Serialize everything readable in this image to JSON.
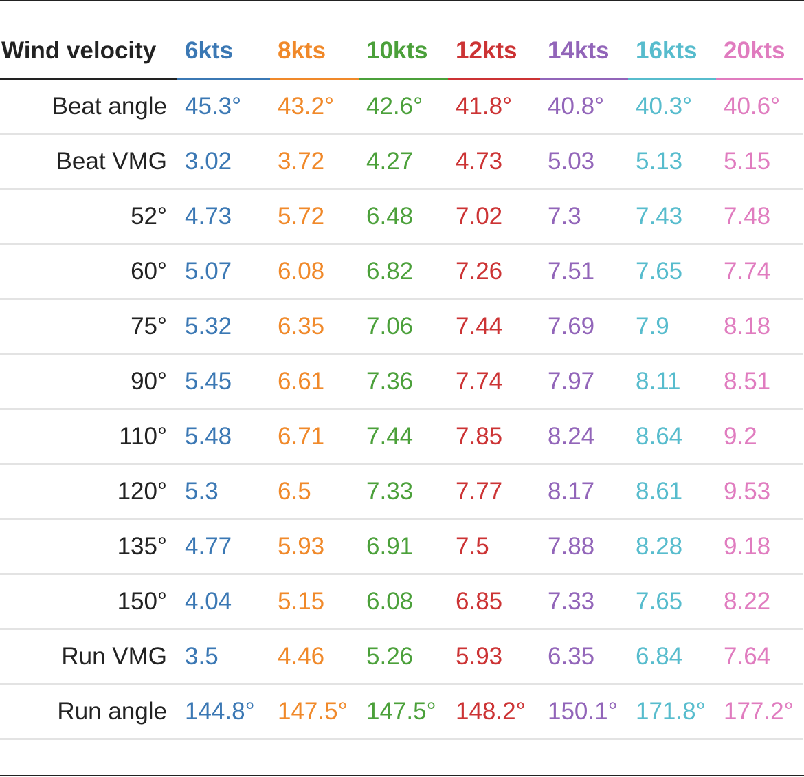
{
  "chart_data": {
    "type": "table",
    "header_label": "Wind velocity",
    "columns": [
      "6kts",
      "8kts",
      "10kts",
      "12kts",
      "14kts",
      "16kts",
      "20kts"
    ],
    "column_colors": [
      "#3b78b4",
      "#f0892a",
      "#4ba03a",
      "#cc3334",
      "#9265b9",
      "#57bccd",
      "#e07cbf"
    ],
    "rows": [
      {
        "label": "Beat angle",
        "values": [
          "45.3°",
          "43.2°",
          "42.6°",
          "41.8°",
          "40.8°",
          "40.3°",
          "40.6°"
        ]
      },
      {
        "label": "Beat VMG",
        "values": [
          "3.02",
          "3.72",
          "4.27",
          "4.73",
          "5.03",
          "5.13",
          "5.15"
        ]
      },
      {
        "label": "52°",
        "values": [
          "4.73",
          "5.72",
          "6.48",
          "7.02",
          "7.3",
          "7.43",
          "7.48"
        ]
      },
      {
        "label": "60°",
        "values": [
          "5.07",
          "6.08",
          "6.82",
          "7.26",
          "7.51",
          "7.65",
          "7.74"
        ]
      },
      {
        "label": "75°",
        "values": [
          "5.32",
          "6.35",
          "7.06",
          "7.44",
          "7.69",
          "7.9",
          "8.18"
        ]
      },
      {
        "label": "90°",
        "values": [
          "5.45",
          "6.61",
          "7.36",
          "7.74",
          "7.97",
          "8.11",
          "8.51"
        ]
      },
      {
        "label": "110°",
        "values": [
          "5.48",
          "6.71",
          "7.44",
          "7.85",
          "8.24",
          "8.64",
          "9.2"
        ]
      },
      {
        "label": "120°",
        "values": [
          "5.3",
          "6.5",
          "7.33",
          "7.77",
          "8.17",
          "8.61",
          "9.53"
        ]
      },
      {
        "label": "135°",
        "values": [
          "4.77",
          "5.93",
          "6.91",
          "7.5",
          "7.88",
          "8.28",
          "9.18"
        ]
      },
      {
        "label": "150°",
        "values": [
          "4.04",
          "5.15",
          "6.08",
          "6.85",
          "7.33",
          "7.65",
          "8.22"
        ]
      },
      {
        "label": "Run VMG",
        "values": [
          "3.5",
          "4.46",
          "5.26",
          "5.93",
          "6.35",
          "6.84",
          "7.64"
        ]
      },
      {
        "label": "Run angle",
        "values": [
          "144.8°",
          "147.5°",
          "147.5°",
          "148.2°",
          "150.1°",
          "171.8°",
          "177.2°"
        ]
      }
    ]
  }
}
